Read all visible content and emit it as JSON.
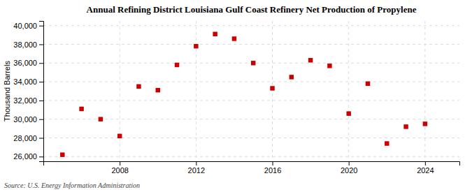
{
  "chart_data": {
    "type": "scatter",
    "title": "Annual Refining District Louisiana Gulf Coast Refinery Net Production of Propylene",
    "y_label": "Thousand Barrels",
    "source": "Source: U.S. Energy Information Administration",
    "x": [
      2005,
      2006,
      2007,
      2008,
      2009,
      2010,
      2011,
      2012,
      2013,
      2014,
      2015,
      2016,
      2017,
      2018,
      2019,
      2020,
      2021,
      2022,
      2023,
      2024
    ],
    "values": [
      26200,
      31100,
      30000,
      28200,
      33500,
      33100,
      35800,
      37800,
      39100,
      38600,
      36000,
      33300,
      34500,
      36300,
      35700,
      30600,
      33800,
      27400,
      29200,
      29500
    ],
    "color": "#cc0000",
    "marker": "square",
    "xlim": [
      2004.0,
      2025.8
    ],
    "xticks": [
      2008,
      2012,
      2016,
      2020,
      2024
    ],
    "ylim": [
      25500,
      40500
    ],
    "yticks": [
      {
        "value": 26000,
        "label": "26,000"
      },
      {
        "value": 28000,
        "label": "28,000"
      },
      {
        "value": 30000,
        "label": "30,000"
      },
      {
        "value": 32000,
        "label": "32,000"
      },
      {
        "value": 34000,
        "label": "34,000"
      },
      {
        "value": 36000,
        "label": "36,000"
      },
      {
        "value": 38000,
        "label": "38,000"
      },
      {
        "value": 40000,
        "label": "40,000"
      }
    ],
    "grid": true
  }
}
